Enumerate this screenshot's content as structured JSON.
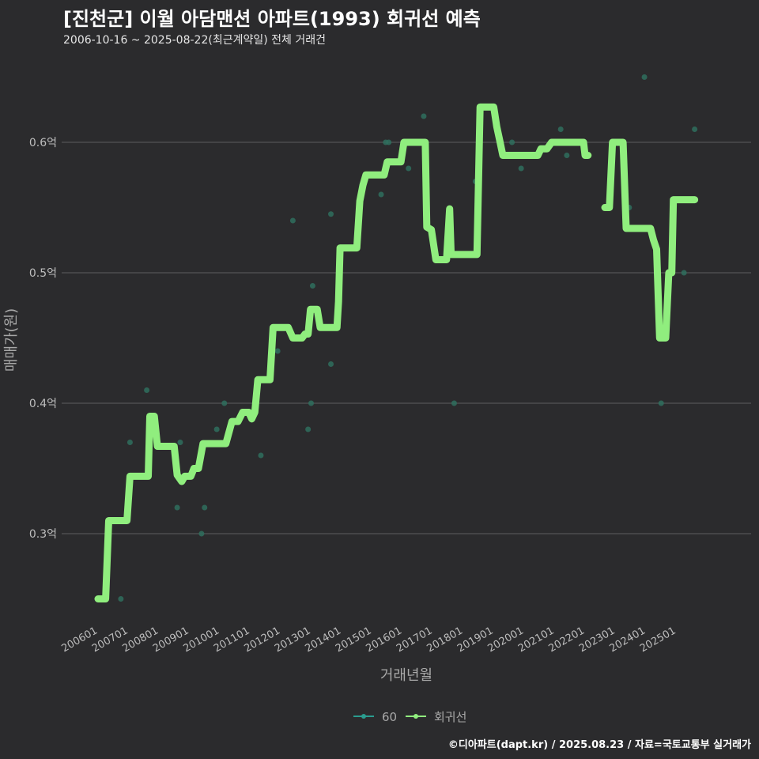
{
  "header": {
    "title": "[진천군] 이월 아담맨션 아파트(1993) 회귀선 예측",
    "subtitle": "2006-10-16 ~ 2025-08-22(최근계약일) 전체 거래건"
  },
  "credit": "©디아파트(dapt.kr) / 2025.08.23 / 자료=국토교통부 실거래가",
  "colors": {
    "background": "#2b2b2d",
    "grid": "#5e5e5e",
    "scatter": "#2f6f5e",
    "line": "#90ee7e",
    "legend_scatter": "#2a9d8f",
    "axis_text": "#bdbdbd"
  },
  "chart_data": {
    "type": "line",
    "xlabel": "거래년월",
    "ylabel": "매매가(원)",
    "x_domain": [
      2006.0,
      2026.0
    ],
    "ylim": [
      0.235,
      0.66
    ],
    "y_ticks": [
      {
        "value": 0.3,
        "label": "0.3억"
      },
      {
        "value": 0.4,
        "label": "0.4억"
      },
      {
        "value": 0.5,
        "label": "0.5억"
      },
      {
        "value": 0.6,
        "label": "0.6억"
      }
    ],
    "x_ticks": [
      {
        "value": 2006.0,
        "label": "200601"
      },
      {
        "value": 2007.0,
        "label": "200701"
      },
      {
        "value": 2008.0,
        "label": "200801"
      },
      {
        "value": 2009.0,
        "label": "200901"
      },
      {
        "value": 2010.0,
        "label": "201001"
      },
      {
        "value": 2011.0,
        "label": "201101"
      },
      {
        "value": 2012.0,
        "label": "201201"
      },
      {
        "value": 2013.0,
        "label": "201301"
      },
      {
        "value": 2014.0,
        "label": "201401"
      },
      {
        "value": 2015.0,
        "label": "201501"
      },
      {
        "value": 2016.0,
        "label": "201601"
      },
      {
        "value": 2017.0,
        "label": "201701"
      },
      {
        "value": 2018.0,
        "label": "201801"
      },
      {
        "value": 2019.0,
        "label": "201901"
      },
      {
        "value": 2020.0,
        "label": "202001"
      },
      {
        "value": 2021.0,
        "label": "202101"
      },
      {
        "value": 2022.0,
        "label": "202201"
      },
      {
        "value": 2023.0,
        "label": "202301"
      },
      {
        "value": 2024.0,
        "label": "202401"
      },
      {
        "value": 2025.0,
        "label": "202501"
      }
    ],
    "legend": [
      {
        "name": "60",
        "kind": "scatter"
      },
      {
        "name": "회귀선",
        "kind": "line"
      }
    ],
    "series": [
      {
        "name": "60",
        "type": "scatter",
        "points": [
          [
            2006.75,
            0.25
          ],
          [
            2007.05,
            0.37
          ],
          [
            2007.6,
            0.41
          ],
          [
            2008.6,
            0.32
          ],
          [
            2008.7,
            0.37
          ],
          [
            2009.4,
            0.3
          ],
          [
            2009.5,
            0.32
          ],
          [
            2009.9,
            0.38
          ],
          [
            2010.15,
            0.4
          ],
          [
            2011.35,
            0.36
          ],
          [
            2011.9,
            0.44
          ],
          [
            2012.4,
            0.54
          ],
          [
            2012.9,
            0.38
          ],
          [
            2013.05,
            0.49
          ],
          [
            2013.0,
            0.4
          ],
          [
            2013.65,
            0.43
          ],
          [
            2013.65,
            0.545
          ],
          [
            2015.3,
            0.56
          ],
          [
            2015.45,
            0.6
          ],
          [
            2015.55,
            0.6
          ],
          [
            2016.2,
            0.58
          ],
          [
            2016.7,
            0.62
          ],
          [
            2017.7,
            0.4
          ],
          [
            2018.4,
            0.57
          ],
          [
            2019.6,
            0.6
          ],
          [
            2019.9,
            0.58
          ],
          [
            2021.2,
            0.61
          ],
          [
            2021.4,
            0.59
          ],
          [
            2023.45,
            0.55
          ],
          [
            2023.95,
            0.65
          ],
          [
            2024.5,
            0.4
          ],
          [
            2025.25,
            0.5
          ],
          [
            2025.6,
            0.61
          ]
        ]
      },
      {
        "name": "회귀선",
        "type": "line",
        "segments": [
          [
            [
              2006.0,
              0.25
            ],
            [
              2006.25,
              0.25
            ],
            [
              2006.35,
              0.31
            ],
            [
              2006.95,
              0.31
            ],
            [
              2007.05,
              0.344
            ],
            [
              2007.65,
              0.344
            ],
            [
              2007.7,
              0.39
            ],
            [
              2007.85,
              0.39
            ],
            [
              2007.95,
              0.367
            ],
            [
              2008.5,
              0.367
            ],
            [
              2008.6,
              0.345
            ],
            [
              2008.75,
              0.34
            ],
            [
              2008.85,
              0.344
            ],
            [
              2009.05,
              0.344
            ],
            [
              2009.15,
              0.35
            ],
            [
              2009.3,
              0.35
            ],
            [
              2009.45,
              0.369
            ],
            [
              2010.2,
              0.369
            ],
            [
              2010.4,
              0.386
            ],
            [
              2010.6,
              0.386
            ],
            [
              2010.75,
              0.393
            ],
            [
              2010.95,
              0.393
            ],
            [
              2011.05,
              0.388
            ],
            [
              2011.15,
              0.393
            ],
            [
              2011.25,
              0.418
            ],
            [
              2011.65,
              0.418
            ],
            [
              2011.75,
              0.458
            ],
            [
              2012.25,
              0.458
            ],
            [
              2012.4,
              0.45
            ],
            [
              2012.7,
              0.45
            ],
            [
              2012.8,
              0.453
            ],
            [
              2012.9,
              0.453
            ],
            [
              2012.98,
              0.472
            ],
            [
              2013.2,
              0.472
            ],
            [
              2013.3,
              0.458
            ],
            [
              2013.85,
              0.458
            ],
            [
              2013.9,
              0.478
            ],
            [
              2013.95,
              0.519
            ],
            [
              2014.5,
              0.519
            ],
            [
              2014.6,
              0.555
            ],
            [
              2014.7,
              0.567
            ],
            [
              2014.8,
              0.575
            ],
            [
              2015.4,
              0.575
            ],
            [
              2015.5,
              0.585
            ],
            [
              2015.95,
              0.585
            ],
            [
              2016.05,
              0.6
            ],
            [
              2016.75,
              0.6
            ],
            [
              2016.8,
              0.535
            ],
            [
              2016.95,
              0.533
            ],
            [
              2017.1,
              0.51
            ],
            [
              2017.45,
              0.51
            ],
            [
              2017.55,
              0.549
            ],
            [
              2017.6,
              0.514
            ],
            [
              2018.45,
              0.514
            ],
            [
              2018.55,
              0.627
            ],
            [
              2019.0,
              0.627
            ],
            [
              2019.1,
              0.612
            ],
            [
              2019.2,
              0.601
            ],
            [
              2019.3,
              0.59
            ],
            [
              2020.45,
              0.59
            ],
            [
              2020.55,
              0.595
            ],
            [
              2020.75,
              0.595
            ],
            [
              2020.9,
              0.6
            ],
            [
              2021.95,
              0.6
            ],
            [
              2022.0,
              0.59
            ],
            [
              2022.1,
              0.59
            ]
          ],
          [
            [
              2022.65,
              0.55
            ],
            [
              2022.8,
              0.55
            ],
            [
              2022.9,
              0.6
            ],
            [
              2023.25,
              0.6
            ],
            [
              2023.35,
              0.534
            ],
            [
              2024.15,
              0.534
            ],
            [
              2024.25,
              0.525
            ],
            [
              2024.35,
              0.518
            ],
            [
              2024.45,
              0.45
            ],
            [
              2024.65,
              0.45
            ],
            [
              2024.75,
              0.5
            ],
            [
              2024.85,
              0.5
            ],
            [
              2024.9,
              0.556
            ],
            [
              2025.6,
              0.556
            ]
          ]
        ]
      }
    ]
  }
}
